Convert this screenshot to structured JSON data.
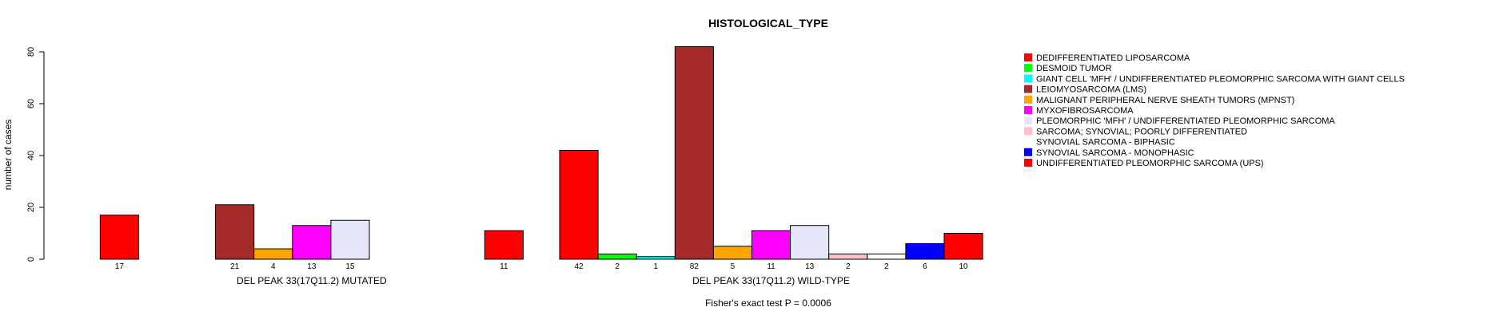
{
  "chart_data": {
    "type": "bar",
    "title": "HISTOLOGICAL_TYPE",
    "ylabel": "number of cases",
    "footer": "Fisher's exact test P = 0.0006",
    "ylim": [
      0,
      80
    ],
    "yticks": [
      0,
      20,
      40,
      60,
      80
    ],
    "grid": false,
    "legend_position": "right",
    "categories": [
      "DEDIFFERENTIATED LIPOSARCOMA",
      "DESMOID TUMOR",
      "GIANT CELL 'MFH' / UNDIFFERENTIATED PLEOMORPHIC SARCOMA WITH GIANT CELLS",
      "LEIOMYOSARCOMA (LMS)",
      "MALIGNANT PERIPHERAL NERVE SHEATH TUMORS (MPNST)",
      "MYXOFIBROSARCOMA",
      "PLEOMORPHIC 'MFH' / UNDIFFERENTIATED PLEOMORPHIC SARCOMA",
      "SARCOMA; SYNOVIAL; POORLY DIFFERENTIATED",
      "SYNOVIAL SARCOMA - BIPHASIC",
      "SYNOVIAL SARCOMA - MONOPHASIC",
      "UNDIFFERENTIATED PLEOMORPHIC SARCOMA (UPS)"
    ],
    "colors": [
      "#ff0000",
      "#00ff00",
      "#00ffff",
      "#a52a2a",
      "#ffa500",
      "#ff00ff",
      "#e6e6fa",
      "#ffc0cb",
      "#ffffff",
      "#0000ff",
      "#ff0000"
    ],
    "series": [
      {
        "name": "DEL PEAK 33(17Q11.2) MUTATED",
        "values": [
          17,
          0,
          0,
          21,
          4,
          13,
          15,
          0,
          0,
          0,
          11
        ]
      },
      {
        "name": "DEL PEAK 33(17Q11.2) WILD-TYPE",
        "values": [
          42,
          2,
          1,
          82,
          5,
          11,
          13,
          2,
          2,
          6,
          10
        ]
      }
    ]
  }
}
